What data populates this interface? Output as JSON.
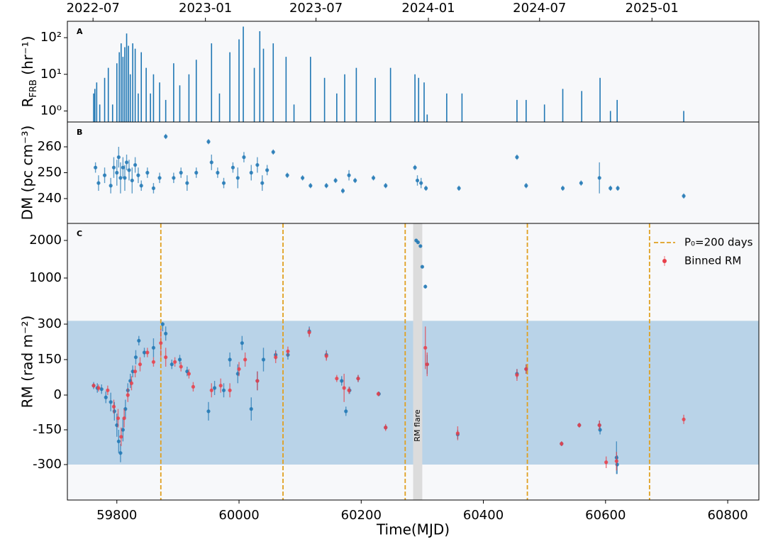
{
  "chart_data": [
    {
      "type": "bar",
      "panel": "A",
      "ylabel": [
        "R",
        "FRB",
        " (hr⁻¹)"
      ],
      "ylog": true,
      "ylim": [
        0.5,
        280
      ],
      "yticks": [
        {
          "value": 1,
          "label": "10⁰"
        },
        {
          "value": 10,
          "label": "10¹"
        },
        {
          "value": 100,
          "label": "10²"
        }
      ],
      "xlim": [
        59719,
        60851
      ],
      "xticks_top": [
        {
          "value": 59761,
          "label": "2022-07"
        },
        {
          "value": 59945,
          "label": "2023-01"
        },
        {
          "value": 60126,
          "label": "2023-07"
        },
        {
          "value": 60310,
          "label": "2024-01"
        },
        {
          "value": 60492,
          "label": "2024-07"
        },
        {
          "value": 60676,
          "label": "2025-01"
        }
      ],
      "series": [
        {
          "color": "#1f77b4",
          "x": [
            59762,
            59764,
            59767,
            59772,
            59780,
            59786,
            59793,
            59800,
            59804,
            59807,
            59810,
            59813,
            59816,
            59819,
            59822,
            59826,
            59830,
            59835,
            59840,
            59848,
            59855,
            59860,
            59870,
            59880,
            59893,
            59903,
            59918,
            59930,
            59955,
            59968,
            59985,
            60000,
            60007,
            60025,
            60034,
            60040,
            60056,
            60077,
            60090,
            60117,
            60140,
            60160,
            60173,
            60192,
            60223,
            60248,
            60288,
            60294,
            60303,
            60308,
            60340,
            60365,
            60455,
            60470,
            60500,
            60530,
            60561,
            60591,
            60608,
            60619,
            60728
          ],
          "values": [
            3,
            4,
            6,
            1.5,
            8,
            15,
            1.5,
            20,
            40,
            70,
            30,
            55,
            130,
            60,
            10,
            70,
            50,
            3,
            40,
            15,
            3,
            10,
            6,
            2,
            20,
            5,
            10,
            25,
            70,
            3,
            40,
            90,
            200,
            15,
            150,
            50,
            70,
            30,
            1.5,
            30,
            8,
            3,
            10,
            15,
            8,
            15,
            10,
            8,
            6,
            0.8,
            3,
            3,
            2,
            2,
            1.5,
            4,
            3.5,
            8,
            1,
            2,
            1
          ]
        }
      ]
    },
    {
      "type": "scatter",
      "panel": "B",
      "ylabel": "DM (pc cm⁻³)",
      "ylim": [
        230.4,
        269.6
      ],
      "yticks": [
        240,
        250,
        260
      ],
      "xlim": [
        59719,
        60851
      ],
      "series": [
        {
          "color": "#1f77b4",
          "x": [
            59765,
            59770,
            59780,
            59790,
            59795,
            59800,
            59803,
            59806,
            59810,
            59813,
            59816,
            59820,
            59825,
            59830,
            59835,
            59840,
            59850,
            59860,
            59870,
            59880,
            59893,
            59905,
            59915,
            59930,
            59950,
            59955,
            59965,
            59975,
            59990,
            59998,
            60008,
            60020,
            60030,
            60038,
            60046,
            60056,
            60079,
            60104,
            60117,
            60143,
            60158,
            60170,
            60180,
            60190,
            60220,
            60240,
            60288,
            60292,
            60298,
            60306,
            60360,
            60455,
            60470,
            60530,
            60560,
            60590,
            60608,
            60620,
            60728
          ],
          "values": [
            252,
            246,
            249,
            245,
            252,
            250,
            256,
            248,
            252,
            248,
            254,
            251,
            247,
            253,
            249,
            245,
            250,
            244,
            248,
            264,
            248,
            250,
            246,
            250,
            262,
            254,
            250,
            246,
            252,
            248,
            256,
            250,
            253,
            246,
            251,
            258,
            249,
            248,
            245,
            245,
            247,
            243,
            249,
            247,
            248,
            245,
            252,
            247,
            246,
            244,
            244,
            256,
            245,
            244,
            246,
            248,
            244,
            244,
            241
          ],
          "errors": [
            2,
            3,
            3,
            3,
            4,
            5,
            4,
            6,
            4,
            5,
            3,
            4,
            5,
            3,
            3,
            2,
            2,
            2,
            2,
            1,
            2,
            2,
            3,
            2,
            1,
            3,
            2,
            2,
            2,
            4,
            2,
            3,
            3,
            3,
            2,
            1,
            1,
            1,
            1,
            1,
            1,
            1,
            2,
            1,
            1,
            1,
            1,
            2,
            2,
            1,
            1,
            1,
            1,
            1,
            1,
            6,
            1,
            1,
            1
          ]
        }
      ]
    },
    {
      "type": "scatter",
      "panel": "C",
      "ylabel": "RM (rad m⁻²)",
      "xlabel": "Time(MJD)",
      "yscale": "piecewise",
      "ylim": [
        -450,
        2450
      ],
      "yticks": [
        -300,
        -150,
        0,
        150,
        300,
        1000,
        2000
      ],
      "xlim": [
        59719,
        60851
      ],
      "xticks": [
        59800,
        60000,
        60200,
        60400,
        60600,
        60800
      ],
      "band_y": [
        -300,
        350
      ],
      "span_x": [
        60285,
        60300
      ],
      "span_label": "RM flare",
      "vlines": [
        59872,
        60072,
        60272,
        60472,
        60672
      ],
      "vlines_label": "P₀=200 days",
      "vlines_color": "#e0a020",
      "series": [
        {
          "color": "#1f77b4",
          "x": [
            59762,
            59768,
            59775,
            59782,
            59790,
            59796,
            59800,
            59803,
            59806,
            59810,
            59814,
            59818,
            59822,
            59826,
            59831,
            59836,
            59845,
            59860,
            59875,
            59880,
            59890,
            59903,
            59915,
            59950,
            59960,
            59975,
            59985,
            59998,
            60005,
            60020,
            60030,
            60040,
            60060,
            60080,
            60115,
            60143,
            60168,
            60175,
            60181,
            60195,
            60229,
            60240,
            60290,
            60293,
            60297,
            60300,
            60305,
            60308,
            60358,
            60455,
            60470,
            60528,
            60557,
            60590,
            60591,
            60618,
            60619
          ],
          "values": [
            40,
            30,
            25,
            -10,
            -30,
            -70,
            -130,
            -200,
            -250,
            -150,
            -60,
            20,
            60,
            100,
            160,
            230,
            180,
            200,
            300,
            260,
            130,
            150,
            100,
            -70,
            30,
            20,
            150,
            90,
            220,
            -60,
            60,
            150,
            170,
            170,
            270,
            170,
            60,
            -70,
            20,
            70,
            5,
            -140,
            2000,
            1950,
            1850,
            1300,
            870,
            130,
            -170,
            90,
            110,
            -210,
            -130,
            -130,
            -150,
            -270,
            -300
          ],
          "errors": [
            15,
            20,
            20,
            25,
            40,
            40,
            50,
            50,
            40,
            50,
            40,
            30,
            30,
            25,
            30,
            20,
            20,
            40,
            30,
            30,
            20,
            20,
            20,
            40,
            30,
            30,
            30,
            40,
            30,
            50,
            40,
            50,
            20,
            20,
            20,
            20,
            20,
            20,
            15,
            15,
            10,
            10,
            40,
            40,
            40,
            30,
            30,
            40,
            20,
            20,
            20,
            10,
            10,
            20,
            20,
            70,
            40
          ]
        },
        {
          "name": "Binned RM",
          "color": "#e8404a",
          "x": [
            59762,
            59770,
            59785,
            59795,
            59802,
            59807,
            59812,
            59818,
            59824,
            59830,
            59838,
            59850,
            59860,
            59872,
            59880,
            59895,
            59905,
            59918,
            59925,
            59955,
            59970,
            59985,
            60000,
            60010,
            60030,
            60060,
            60080,
            60115,
            60143,
            60160,
            60172,
            60180,
            60195,
            60228,
            60240,
            60305,
            60308,
            60358,
            60455,
            60470,
            60528,
            60557,
            60590,
            60601,
            60618,
            60728
          ],
          "values": [
            40,
            30,
            20,
            -50,
            -100,
            -180,
            -100,
            0,
            50,
            100,
            130,
            180,
            140,
            220,
            160,
            140,
            120,
            90,
            35,
            20,
            40,
            20,
            110,
            150,
            60,
            160,
            185,
            265,
            165,
            70,
            30,
            20,
            70,
            5,
            -140,
            200,
            130,
            -165,
            85,
            110,
            -210,
            -130,
            -130,
            -290,
            -285,
            -105
          ],
          "errors": [
            10,
            15,
            20,
            30,
            40,
            40,
            40,
            30,
            30,
            25,
            30,
            20,
            20,
            60,
            40,
            20,
            20,
            20,
            20,
            30,
            30,
            30,
            30,
            30,
            40,
            25,
            20,
            20,
            20,
            15,
            60,
            15,
            15,
            10,
            15,
            90,
            50,
            30,
            25,
            20,
            10,
            10,
            20,
            25,
            40,
            20
          ]
        }
      ]
    }
  ]
}
